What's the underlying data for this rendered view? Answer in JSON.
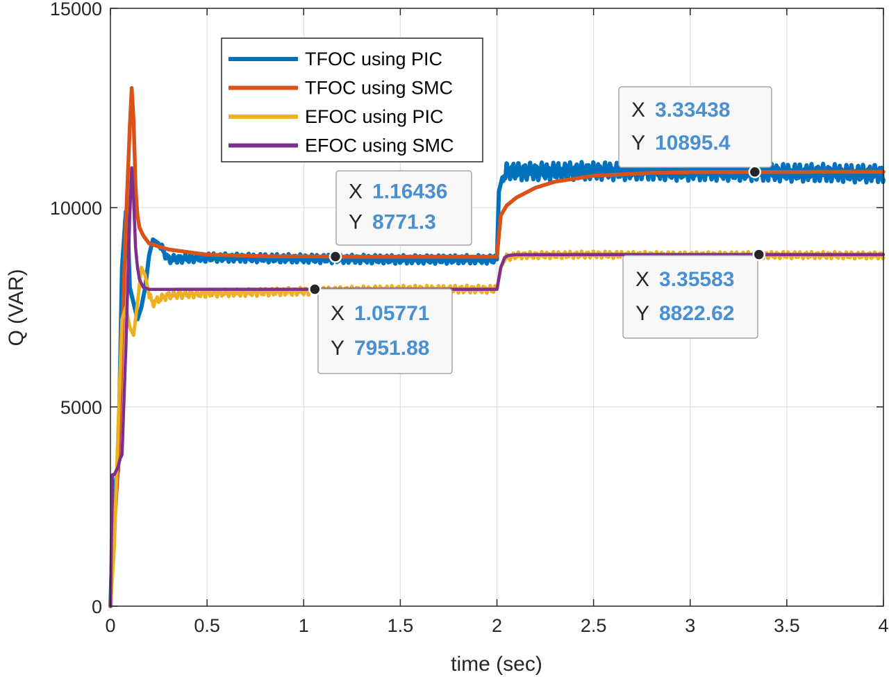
{
  "chart_data": {
    "type": "line",
    "xlabel": "time (sec)",
    "ylabel": "Q (VAR)",
    "xlim": [
      0,
      4
    ],
    "ylim": [
      0,
      15000
    ],
    "xticks": [
      0,
      0.5,
      1,
      1.5,
      2,
      2.5,
      3,
      3.5,
      4
    ],
    "yticks": [
      0,
      5000,
      10000,
      15000
    ],
    "xtick_labels": [
      "0",
      "0.5",
      "1",
      "1.5",
      "2",
      "2.5",
      "3",
      "3.5",
      "4"
    ],
    "ytick_labels": [
      "0",
      "5000",
      "10000",
      "15000"
    ],
    "grid": true,
    "legend_position": "top-left",
    "series": [
      {
        "name": "TFOC using PIC",
        "color": "#0072BD",
        "x": [
          0,
          0.02,
          0.04,
          0.06,
          0.08,
          0.09,
          0.1,
          0.12,
          0.14,
          0.16,
          0.18,
          0.2,
          0.22,
          0.25,
          0.3,
          0.5,
          1.0,
          1.5,
          1.99,
          2.0,
          2.01,
          2.03,
          2.06,
          2.1,
          2.5,
          3.0,
          3.5,
          4.0
        ],
        "values": [
          0,
          3000,
          3400,
          8500,
          9900,
          9500,
          8000,
          7600,
          7200,
          7500,
          8000,
          8800,
          9200,
          9100,
          8700,
          8750,
          8720,
          8700,
          8700,
          8700,
          10400,
          10800,
          10950,
          10900,
          10920,
          10900,
          10880,
          10850
        ]
      },
      {
        "name": "TFOC using SMC",
        "color": "#D95319",
        "x": [
          0,
          0.02,
          0.04,
          0.06,
          0.08,
          0.1,
          0.11,
          0.12,
          0.13,
          0.14,
          0.15,
          0.17,
          0.2,
          0.3,
          0.5,
          0.8,
          1.2,
          1.99,
          2.0,
          2.02,
          2.05,
          2.1,
          2.2,
          2.3,
          2.5,
          2.8,
          3.0,
          3.5,
          4.0
        ],
        "values": [
          0,
          2000,
          3500,
          6500,
          9600,
          12000,
          13000,
          12200,
          10500,
          9800,
          9500,
          9300,
          9100,
          8950,
          8820,
          8780,
          8770,
          8770,
          8770,
          9800,
          10050,
          10250,
          10500,
          10650,
          10800,
          10870,
          10890,
          10895,
          10900
        ]
      },
      {
        "name": "EFOC using PIC",
        "color": "#EDB120",
        "x": [
          0,
          0.02,
          0.04,
          0.06,
          0.08,
          0.1,
          0.12,
          0.14,
          0.16,
          0.18,
          0.2,
          0.22,
          0.25,
          0.3,
          0.5,
          1.0,
          1.5,
          1.99,
          2.0,
          2.02,
          2.05,
          2.1,
          2.5,
          3.0,
          3.5,
          4.0
        ],
        "values": [
          0,
          1500,
          4500,
          7200,
          7500,
          7000,
          6800,
          7600,
          8500,
          8300,
          7800,
          7600,
          7700,
          7800,
          7850,
          7900,
          7950,
          7950,
          7950,
          8500,
          8750,
          8800,
          8820,
          8800,
          8810,
          8800
        ]
      },
      {
        "name": "EFOC using SMC",
        "color": "#7E2F8E",
        "x": [
          0,
          0.01,
          0.02,
          0.04,
          0.05,
          0.06,
          0.08,
          0.1,
          0.11,
          0.12,
          0.13,
          0.14,
          0.15,
          0.17,
          0.2,
          0.3,
          0.5,
          1.0,
          1.99,
          2.0,
          2.02,
          2.04,
          2.06,
          2.1,
          2.5,
          3.0,
          3.5,
          4.0
        ],
        "values": [
          0,
          3300,
          3300,
          3500,
          3700,
          3800,
          6500,
          9800,
          11000,
          10200,
          9000,
          8500,
          8200,
          8000,
          7950,
          7950,
          7952,
          7952,
          7952,
          7952,
          8500,
          8750,
          8800,
          8820,
          8822,
          8822,
          8822,
          8822
        ]
      }
    ],
    "datatips": [
      {
        "series": "TFOC using SMC",
        "x_label": "X",
        "y_label": "Y",
        "x": 1.16436,
        "y": 8771.3,
        "x_text": "1.16436",
        "y_text": "8771.3"
      },
      {
        "series": "EFOC using SMC",
        "x_label": "X",
        "y_label": "Y",
        "x": 1.05771,
        "y": 7951.88,
        "x_text": "1.05771",
        "y_text": "7951.88"
      },
      {
        "series": "TFOC using SMC",
        "x_label": "X",
        "y_label": "Y",
        "x": 3.33438,
        "y": 10895.4,
        "x_text": "3.33438",
        "y_text": "10895.4"
      },
      {
        "series": "EFOC using SMC",
        "x_label": "X",
        "y_label": "Y",
        "x": 3.35583,
        "y": 8822.62,
        "x_text": "3.35583",
        "y_text": "8822.62"
      }
    ]
  }
}
